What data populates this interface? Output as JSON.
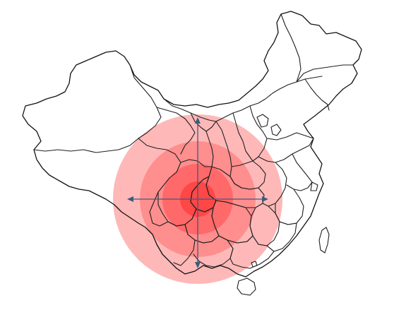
{
  "map": {
    "type": "choropleth-outline-with-radial-overlay",
    "region": "China",
    "outline_color": "#1f1f1f",
    "background_color": "#ffffff"
  },
  "overlay": {
    "shape": "concentric-circles",
    "ring_count": 4,
    "ring_colors": [
      "#ffb8b8",
      "#ff8e8e",
      "#ff6969",
      "#ff4747"
    ],
    "crosshair": {
      "color": "#3b5b7d",
      "arrows": [
        "north",
        "south",
        "east",
        "west"
      ]
    }
  }
}
